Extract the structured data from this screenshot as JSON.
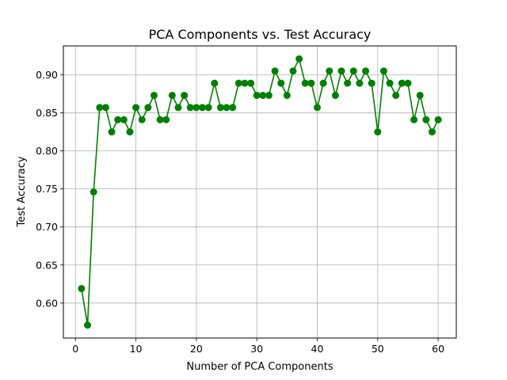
{
  "chart_data": {
    "type": "line",
    "title": "PCA Components vs. Test Accuracy",
    "xlabel": "Number of PCA Components",
    "ylabel": "Test Accuracy",
    "xlim": [
      -2,
      63
    ],
    "ylim": [
      0.554,
      0.938
    ],
    "xticks": [
      0,
      10,
      20,
      30,
      40,
      50,
      60
    ],
    "yticks": [
      0.6,
      0.65,
      0.7,
      0.75,
      0.8,
      0.85,
      0.9
    ],
    "ytick_labels": [
      "0.60",
      "0.65",
      "0.70",
      "0.75",
      "0.80",
      "0.85",
      "0.90"
    ],
    "grid": true,
    "color": "#008000",
    "x": [
      1,
      2,
      3,
      4,
      5,
      6,
      7,
      8,
      9,
      10,
      11,
      12,
      13,
      14,
      15,
      16,
      17,
      18,
      19,
      20,
      21,
      22,
      23,
      24,
      25,
      26,
      27,
      28,
      29,
      30,
      31,
      32,
      33,
      34,
      35,
      36,
      37,
      38,
      39,
      40,
      41,
      42,
      43,
      44,
      45,
      46,
      47,
      48,
      49,
      50,
      51,
      52,
      53,
      54,
      55,
      56,
      57,
      58,
      59,
      60
    ],
    "y": [
      0.619,
      0.571,
      0.746,
      0.857,
      0.857,
      0.825,
      0.841,
      0.841,
      0.825,
      0.857,
      0.841,
      0.857,
      0.873,
      0.841,
      0.841,
      0.873,
      0.857,
      0.873,
      0.857,
      0.857,
      0.857,
      0.857,
      0.889,
      0.857,
      0.857,
      0.857,
      0.889,
      0.889,
      0.889,
      0.873,
      0.873,
      0.873,
      0.905,
      0.889,
      0.873,
      0.905,
      0.921,
      0.889,
      0.889,
      0.857,
      0.889,
      0.905,
      0.873,
      0.905,
      0.889,
      0.905,
      0.889,
      0.905,
      0.889,
      0.825,
      0.905,
      0.889,
      0.873,
      0.889,
      0.889,
      0.841,
      0.873,
      0.841,
      0.825,
      0.841
    ]
  }
}
